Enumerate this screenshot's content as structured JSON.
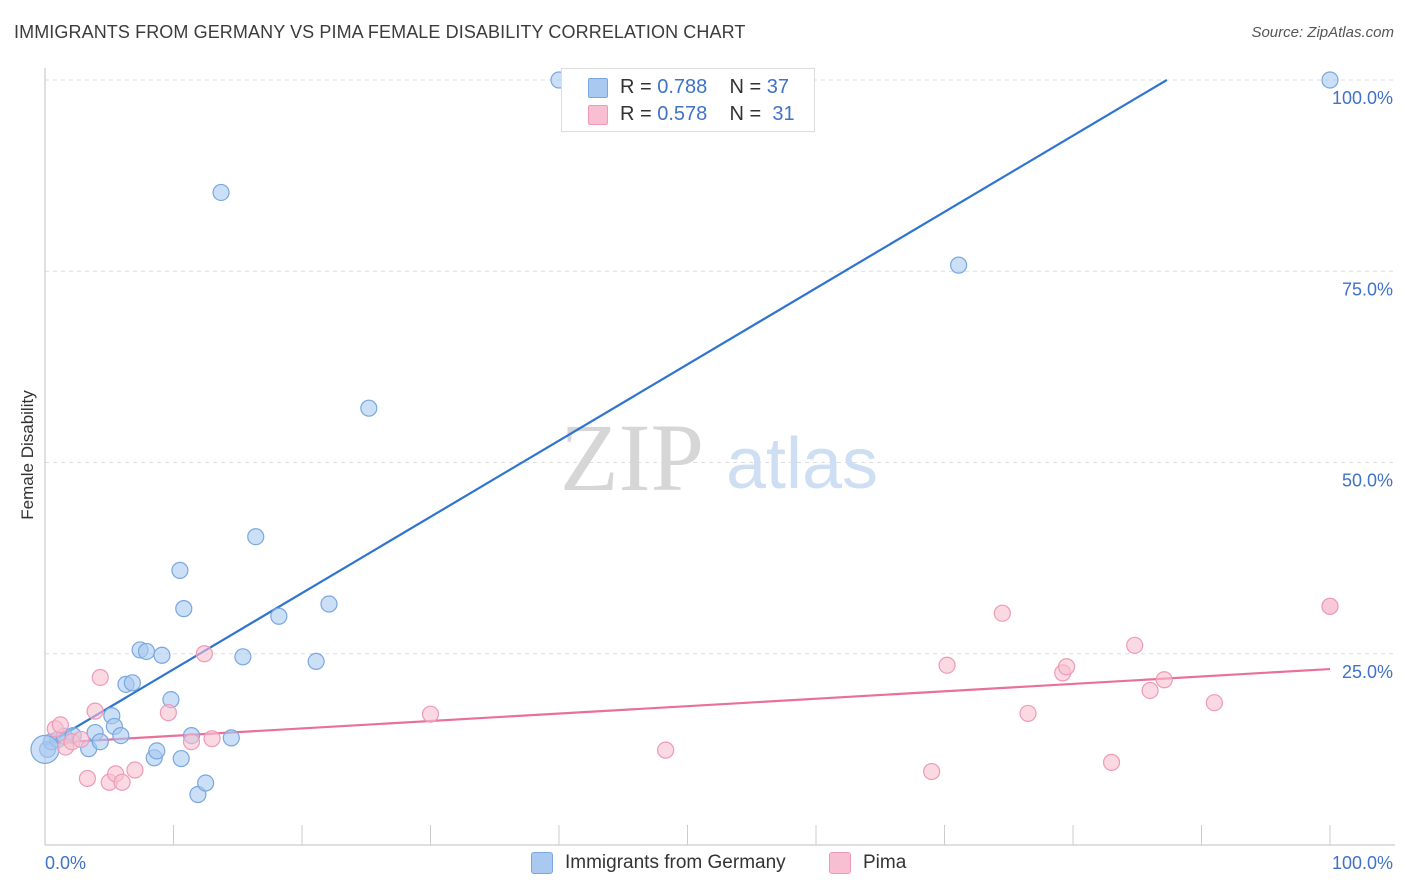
{
  "title": "IMMIGRANTS FROM GERMANY VS PIMA FEMALE DISABILITY CORRELATION CHART",
  "source": "Source: ZipAtlas.com",
  "watermark": {
    "zip": "ZIP",
    "atlas": "atlas"
  },
  "legend_top": [
    {
      "r_label": "R =",
      "r_value": "0.788",
      "n_label": "N =",
      "n_value": "37"
    },
    {
      "r_label": "R =",
      "r_value": "0.578",
      "n_label": "N =",
      "n_value": "31"
    }
  ],
  "legend_bottom": [
    {
      "label": "Immigrants from Germany"
    },
    {
      "label": "Pima"
    }
  ],
  "colors": {
    "blue_fill": "#a9c9f0",
    "blue_stroke": "#7aa7e0",
    "blue_line": "#2f74d0",
    "pink_fill": "#f7bfd1",
    "pink_stroke": "#ef9ab7",
    "pink_line": "#e8709b",
    "axis_text": "#3f72c8",
    "grid": "#dddddd"
  },
  "chart_data": {
    "type": "scatter",
    "title": "IMMIGRANTS FROM GERMANY VS PIMA FEMALE DISABILITY CORRELATION CHART",
    "xlabel": "",
    "ylabel": "Female Disability",
    "xlim": [
      0,
      100
    ],
    "ylim": [
      0,
      100
    ],
    "x_tick_labels": [
      "0.0%",
      "100.0%"
    ],
    "y_ticks": [
      25,
      50,
      75,
      100
    ],
    "y_tick_labels": [
      "25.0%",
      "50.0%",
      "75.0%",
      "100.0%"
    ],
    "grid": true,
    "series": [
      {
        "name": "Immigrants from Germany",
        "points": [
          [
            0.2,
            12.5
          ],
          [
            0.5,
            13.5
          ],
          [
            1.0,
            13.8
          ],
          [
            1.5,
            14.2
          ],
          [
            2.2,
            14.3
          ],
          [
            3.4,
            12.6
          ],
          [
            3.9,
            14.7
          ],
          [
            4.3,
            13.5
          ],
          [
            5.2,
            16.9
          ],
          [
            5.4,
            15.5
          ],
          [
            5.9,
            14.3
          ],
          [
            6.3,
            21.0
          ],
          [
            6.8,
            21.2
          ],
          [
            7.4,
            25.5
          ],
          [
            7.9,
            25.3
          ],
          [
            8.5,
            11.4
          ],
          [
            8.7,
            12.3
          ],
          [
            9.1,
            24.8
          ],
          [
            9.8,
            19.0
          ],
          [
            10.5,
            35.9
          ],
          [
            10.6,
            11.3
          ],
          [
            10.8,
            30.9
          ],
          [
            11.4,
            14.3
          ],
          [
            11.9,
            6.6
          ],
          [
            12.5,
            8.1
          ],
          [
            14.5,
            14.0
          ],
          [
            13.7,
            85.3
          ],
          [
            15.4,
            24.6
          ],
          [
            16.4,
            40.3
          ],
          [
            18.2,
            29.9
          ],
          [
            21.1,
            24.0
          ],
          [
            22.1,
            31.5
          ],
          [
            25.2,
            57.1
          ],
          [
            40.0,
            100.0
          ],
          [
            71.1,
            75.8
          ],
          [
            100.0,
            100.0
          ],
          [
            0.0,
            12.5
          ]
        ],
        "trend": {
          "x": [
            0,
            87.3
          ],
          "y": [
            13.0,
            100.0
          ]
        }
      },
      {
        "name": "Pima",
        "points": [
          [
            0.8,
            15.2
          ],
          [
            1.2,
            15.7
          ],
          [
            1.6,
            12.8
          ],
          [
            2.1,
            13.5
          ],
          [
            2.8,
            13.8
          ],
          [
            3.3,
            8.7
          ],
          [
            3.9,
            17.5
          ],
          [
            4.3,
            21.9
          ],
          [
            5.0,
            8.2
          ],
          [
            5.5,
            9.3
          ],
          [
            6.0,
            8.2
          ],
          [
            7.0,
            9.8
          ],
          [
            9.6,
            17.3
          ],
          [
            11.4,
            13.5
          ],
          [
            12.4,
            25.0
          ],
          [
            13.0,
            13.9
          ],
          [
            30.0,
            17.1
          ],
          [
            48.3,
            12.4
          ],
          [
            69.0,
            9.6
          ],
          [
            70.2,
            23.5
          ],
          [
            74.5,
            30.3
          ],
          [
            76.5,
            17.2
          ],
          [
            79.2,
            22.5
          ],
          [
            79.5,
            23.3
          ],
          [
            83.0,
            10.8
          ],
          [
            84.8,
            26.1
          ],
          [
            86.0,
            20.2
          ],
          [
            87.1,
            21.6
          ],
          [
            91.0,
            18.6
          ],
          [
            100.0,
            31.2
          ],
          [
            100.0,
            31.2
          ]
        ],
        "trend": {
          "x": [
            0,
            100
          ],
          "y": [
            13.3,
            23.0
          ]
        }
      }
    ]
  }
}
